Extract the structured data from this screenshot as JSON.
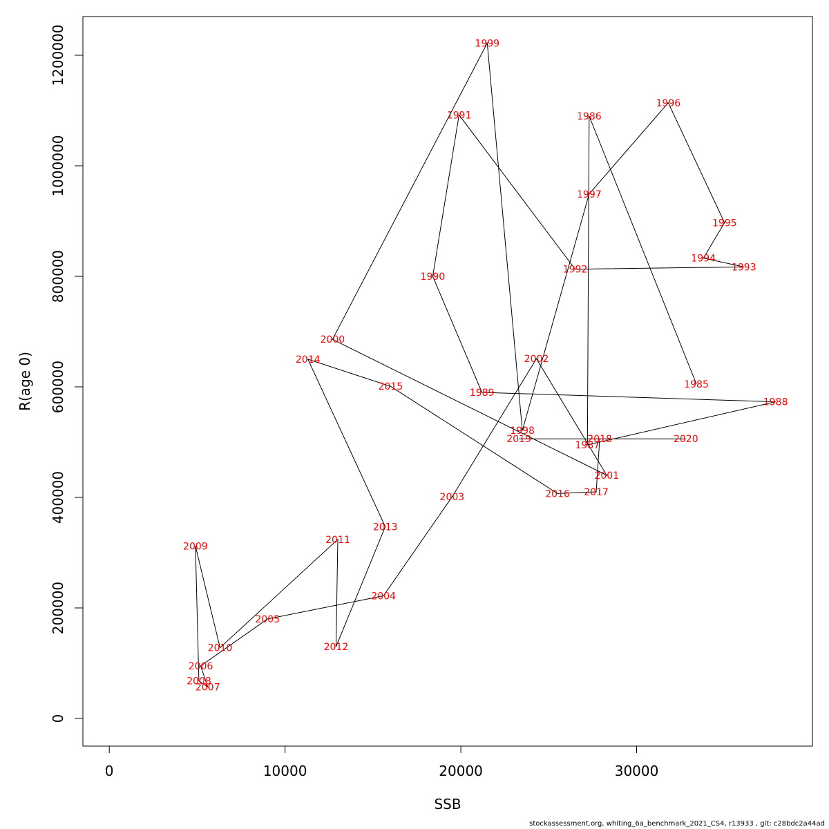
{
  "footer": "stockassessment.org, whiting_6a_benchmark_2021_CS4, r13933 , git: c28bdc2a44ad",
  "chart_data": {
    "type": "line",
    "title": "",
    "xlabel": "SSB",
    "ylabel": "R(age 0)",
    "xlim": [
      -1500,
      40000
    ],
    "ylim": [
      -50000,
      1270000
    ],
    "x_ticks": [
      0,
      10000,
      20000,
      30000
    ],
    "y_ticks": [
      0,
      200000,
      400000,
      600000,
      800000,
      1000000,
      1200000
    ],
    "x_tick_labels": [
      "0",
      "10000",
      "20000",
      "30000"
    ],
    "y_tick_labels": [
      "0",
      "200000",
      "400000",
      "600000",
      "800000",
      "1000000",
      "1200000"
    ],
    "grid": false,
    "label_color": "#ff0000",
    "line_color": "#000000",
    "points": [
      {
        "year": "1985",
        "x": 33400,
        "y": 605000
      },
      {
        "year": "1986",
        "x": 27300,
        "y": 1090000
      },
      {
        "year": "1987",
        "x": 27200,
        "y": 495000
      },
      {
        "year": "1988",
        "x": 37900,
        "y": 573000
      },
      {
        "year": "1989",
        "x": 21200,
        "y": 590000
      },
      {
        "year": "1990",
        "x": 18400,
        "y": 800000
      },
      {
        "year": "1991",
        "x": 19900,
        "y": 1092000
      },
      {
        "year": "1992",
        "x": 26500,
        "y": 813000
      },
      {
        "year": "1993",
        "x": 36100,
        "y": 817000
      },
      {
        "year": "1994",
        "x": 33800,
        "y": 833000
      },
      {
        "year": "1995",
        "x": 35000,
        "y": 897000
      },
      {
        "year": "1996",
        "x": 31800,
        "y": 1114000
      },
      {
        "year": "1997",
        "x": 27300,
        "y": 949000
      },
      {
        "year": "1998",
        "x": 23500,
        "y": 521000
      },
      {
        "year": "1999",
        "x": 21500,
        "y": 1222000
      },
      {
        "year": "2000",
        "x": 12700,
        "y": 686000
      },
      {
        "year": "2001",
        "x": 28300,
        "y": 440000
      },
      {
        "year": "2002",
        "x": 24300,
        "y": 651000
      },
      {
        "year": "2003",
        "x": 19500,
        "y": 401000
      },
      {
        "year": "2004",
        "x": 15600,
        "y": 222000
      },
      {
        "year": "2005",
        "x": 9000,
        "y": 180000
      },
      {
        "year": "2006",
        "x": 5200,
        "y": 95000
      },
      {
        "year": "2007",
        "x": 5600,
        "y": 57000
      },
      {
        "year": "2008",
        "x": 5100,
        "y": 68000
      },
      {
        "year": "2009",
        "x": 4900,
        "y": 312000
      },
      {
        "year": "2010",
        "x": 6300,
        "y": 128000
      },
      {
        "year": "2011",
        "x": 13000,
        "y": 324000
      },
      {
        "year": "2012",
        "x": 12900,
        "y": 130000
      },
      {
        "year": "2013",
        "x": 15700,
        "y": 347000
      },
      {
        "year": "2014",
        "x": 11300,
        "y": 650000
      },
      {
        "year": "2015",
        "x": 16000,
        "y": 601000
      },
      {
        "year": "2016",
        "x": 25500,
        "y": 407000
      },
      {
        "year": "2017",
        "x": 27700,
        "y": 410000
      },
      {
        "year": "2018",
        "x": 27900,
        "y": 506000
      },
      {
        "year": "2019",
        "x": 23300,
        "y": 506000
      },
      {
        "year": "2020",
        "x": 32800,
        "y": 506000
      }
    ]
  }
}
